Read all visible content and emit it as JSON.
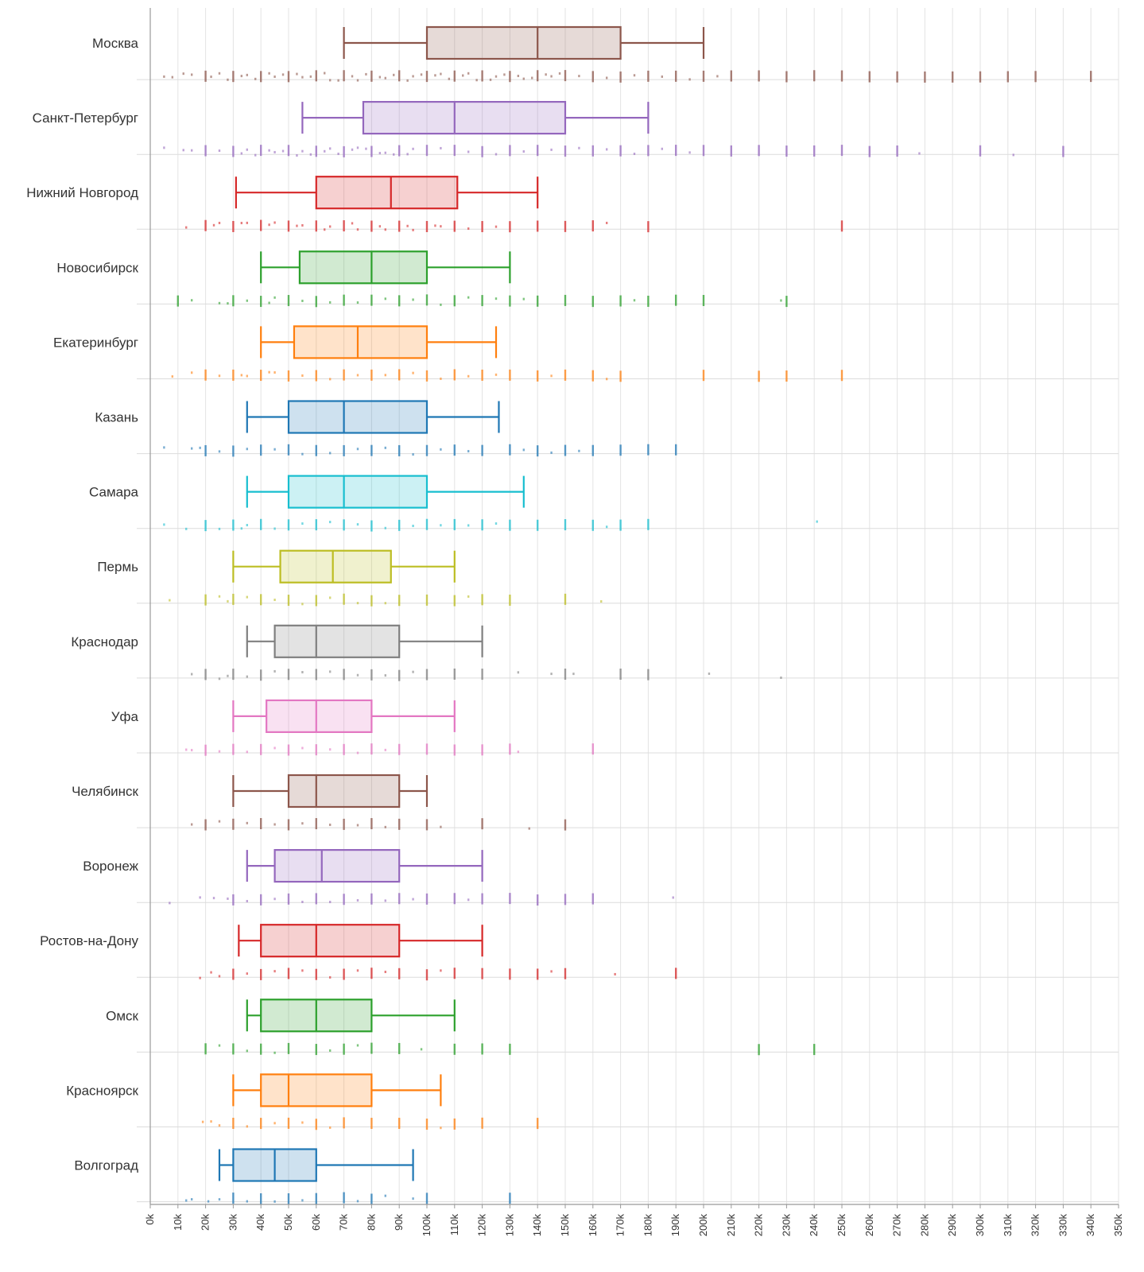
{
  "chart_data": {
    "type": "box",
    "orientation": "horizontal",
    "title": "",
    "xlabel": "",
    "ylabel": "",
    "xlim": [
      0,
      350000
    ],
    "x_tick_step": 10000,
    "x_ticks": [
      "0k",
      "10k",
      "20k",
      "30k",
      "40k",
      "50k",
      "60k",
      "70k",
      "80k",
      "90k",
      "100k",
      "110k",
      "120k",
      "130k",
      "140k",
      "150k",
      "160k",
      "170k",
      "180k",
      "190k",
      "200k",
      "210k",
      "220k",
      "230k",
      "240k",
      "250k",
      "260k",
      "270k",
      "280k",
      "290k",
      "300k",
      "310k",
      "320k",
      "330k",
      "340k",
      "350k"
    ],
    "grid": true,
    "show_points": true,
    "categories": [
      {
        "name": "Москва",
        "color": "#8c564b",
        "whisker_low": 70000,
        "q1": 100000,
        "median": 140000,
        "q3": 170000,
        "whisker_high": 200000,
        "points": [
          5000,
          8000,
          12000,
          15000,
          20000,
          22000,
          25000,
          28000,
          30000,
          33000,
          35000,
          38000,
          40000,
          43000,
          45000,
          48000,
          50000,
          53000,
          55000,
          58000,
          60000,
          63000,
          65000,
          68000,
          70000,
          73000,
          75000,
          78000,
          80000,
          83000,
          85000,
          88000,
          90000,
          93000,
          95000,
          98000,
          100000,
          103000,
          105000,
          108000,
          110000,
          113000,
          115000,
          118000,
          120000,
          123000,
          125000,
          128000,
          130000,
          133000,
          135000,
          138000,
          140000,
          143000,
          145000,
          148000,
          150000,
          155000,
          160000,
          165000,
          170000,
          175000,
          180000,
          185000,
          190000,
          195000,
          200000,
          205000,
          210000,
          220000,
          230000,
          240000,
          250000,
          260000,
          270000,
          280000,
          290000,
          300000,
          310000,
          320000,
          340000
        ]
      },
      {
        "name": "Санкт-Петербург",
        "color": "#9467bd",
        "whisker_low": 55000,
        "q1": 77000,
        "median": 110000,
        "q3": 150000,
        "whisker_high": 180000,
        "points": [
          5000,
          12000,
          15000,
          20000,
          25000,
          30000,
          33000,
          35000,
          38000,
          40000,
          43000,
          45000,
          48000,
          50000,
          53000,
          55000,
          58000,
          60000,
          63000,
          65000,
          68000,
          70000,
          73000,
          75000,
          78000,
          80000,
          83000,
          85000,
          88000,
          90000,
          93000,
          95000,
          100000,
          105000,
          110000,
          115000,
          120000,
          125000,
          130000,
          135000,
          140000,
          145000,
          150000,
          155000,
          160000,
          165000,
          170000,
          175000,
          180000,
          185000,
          190000,
          195000,
          200000,
          210000,
          220000,
          230000,
          240000,
          250000,
          260000,
          270000,
          278000,
          300000,
          312000,
          330000
        ]
      },
      {
        "name": "Нижний Новгород",
        "color": "#d62728",
        "whisker_low": 31000,
        "q1": 60000,
        "median": 87000,
        "q3": 111000,
        "whisker_high": 140000,
        "points": [
          13000,
          20000,
          23000,
          25000,
          30000,
          33000,
          35000,
          40000,
          43000,
          45000,
          50000,
          53000,
          55000,
          60000,
          63000,
          65000,
          70000,
          73000,
          75000,
          80000,
          83000,
          85000,
          90000,
          93000,
          95000,
          100000,
          103000,
          105000,
          110000,
          115000,
          120000,
          125000,
          130000,
          140000,
          150000,
          160000,
          165000,
          180000,
          250000
        ]
      },
      {
        "name": "Новосибирск",
        "color": "#2ca02c",
        "whisker_low": 40000,
        "q1": 54000,
        "median": 80000,
        "q3": 100000,
        "whisker_high": 130000,
        "points": [
          10000,
          15000,
          25000,
          28000,
          30000,
          35000,
          40000,
          43000,
          45000,
          50000,
          55000,
          60000,
          65000,
          70000,
          75000,
          80000,
          85000,
          90000,
          95000,
          100000,
          105000,
          110000,
          115000,
          120000,
          125000,
          130000,
          135000,
          140000,
          150000,
          160000,
          170000,
          175000,
          180000,
          190000,
          200000,
          228000,
          230000
        ]
      },
      {
        "name": "Екатеринбург",
        "color": "#ff7f0e",
        "whisker_low": 40000,
        "q1": 52000,
        "median": 75000,
        "q3": 100000,
        "whisker_high": 125000,
        "points": [
          8000,
          15000,
          20000,
          25000,
          30000,
          33000,
          35000,
          40000,
          43000,
          45000,
          50000,
          55000,
          60000,
          65000,
          70000,
          75000,
          80000,
          85000,
          90000,
          95000,
          100000,
          105000,
          110000,
          115000,
          120000,
          125000,
          130000,
          140000,
          145000,
          150000,
          160000,
          165000,
          170000,
          200000,
          220000,
          230000,
          250000
        ]
      },
      {
        "name": "Казань",
        "color": "#1f77b4",
        "whisker_low": 35000,
        "q1": 50000,
        "median": 70000,
        "q3": 100000,
        "whisker_high": 126000,
        "points": [
          5000,
          15000,
          18000,
          20000,
          25000,
          30000,
          35000,
          40000,
          45000,
          50000,
          55000,
          60000,
          65000,
          70000,
          75000,
          80000,
          85000,
          90000,
          95000,
          100000,
          105000,
          110000,
          115000,
          120000,
          130000,
          135000,
          140000,
          145000,
          150000,
          155000,
          160000,
          170000,
          180000,
          190000
        ]
      },
      {
        "name": "Самара",
        "color": "#17becf",
        "whisker_low": 35000,
        "q1": 50000,
        "median": 70000,
        "q3": 100000,
        "whisker_high": 135000,
        "points": [
          5000,
          13000,
          20000,
          25000,
          30000,
          33000,
          35000,
          40000,
          45000,
          50000,
          55000,
          60000,
          65000,
          70000,
          75000,
          80000,
          85000,
          90000,
          95000,
          100000,
          105000,
          110000,
          115000,
          120000,
          125000,
          130000,
          140000,
          150000,
          160000,
          165000,
          170000,
          180000,
          241000
        ]
      },
      {
        "name": "Пермь",
        "color": "#bcbd22",
        "whisker_low": 30000,
        "q1": 47000,
        "median": 66000,
        "q3": 87000,
        "whisker_high": 110000,
        "points": [
          7000,
          20000,
          25000,
          28000,
          30000,
          35000,
          40000,
          45000,
          50000,
          55000,
          60000,
          65000,
          70000,
          75000,
          80000,
          85000,
          90000,
          100000,
          110000,
          115000,
          120000,
          130000,
          150000,
          163000
        ]
      },
      {
        "name": "Краснодар",
        "color": "#7f7f7f",
        "whisker_low": 35000,
        "q1": 45000,
        "median": 60000,
        "q3": 90000,
        "whisker_high": 120000,
        "points": [
          15000,
          20000,
          25000,
          28000,
          30000,
          35000,
          40000,
          45000,
          50000,
          55000,
          60000,
          65000,
          70000,
          75000,
          80000,
          85000,
          90000,
          95000,
          100000,
          110000,
          120000,
          133000,
          145000,
          150000,
          153000,
          170000,
          180000,
          202000,
          228000
        ]
      },
      {
        "name": "Уфа",
        "color": "#e377c2",
        "whisker_low": 30000,
        "q1": 42000,
        "median": 60000,
        "q3": 80000,
        "whisker_high": 110000,
        "points": [
          13000,
          15000,
          20000,
          25000,
          30000,
          35000,
          40000,
          45000,
          50000,
          55000,
          60000,
          65000,
          70000,
          75000,
          80000,
          85000,
          90000,
          100000,
          110000,
          120000,
          130000,
          133000,
          160000
        ]
      },
      {
        "name": "Челябинск",
        "color": "#8c564b",
        "whisker_low": 30000,
        "q1": 50000,
        "median": 60000,
        "q3": 90000,
        "whisker_high": 100000,
        "points": [
          15000,
          20000,
          25000,
          30000,
          35000,
          40000,
          45000,
          50000,
          55000,
          60000,
          65000,
          70000,
          75000,
          80000,
          85000,
          90000,
          100000,
          105000,
          120000,
          137000,
          150000
        ]
      },
      {
        "name": "Воронеж",
        "color": "#9467bd",
        "whisker_low": 35000,
        "q1": 45000,
        "median": 62000,
        "q3": 90000,
        "whisker_high": 120000,
        "points": [
          7000,
          18000,
          23000,
          28000,
          30000,
          35000,
          40000,
          45000,
          50000,
          55000,
          60000,
          65000,
          70000,
          75000,
          80000,
          85000,
          90000,
          95000,
          100000,
          110000,
          115000,
          120000,
          130000,
          140000,
          150000,
          160000,
          189000
        ]
      },
      {
        "name": "Ростов-на-Дону",
        "color": "#d62728",
        "whisker_low": 32000,
        "q1": 40000,
        "median": 60000,
        "q3": 90000,
        "whisker_high": 120000,
        "points": [
          18000,
          22000,
          25000,
          30000,
          35000,
          40000,
          45000,
          50000,
          55000,
          60000,
          65000,
          70000,
          75000,
          80000,
          85000,
          90000,
          100000,
          105000,
          110000,
          120000,
          130000,
          140000,
          145000,
          150000,
          168000,
          190000
        ]
      },
      {
        "name": "Омск",
        "color": "#2ca02c",
        "whisker_low": 35000,
        "q1": 40000,
        "median": 60000,
        "q3": 80000,
        "whisker_high": 110000,
        "points": [
          20000,
          25000,
          30000,
          35000,
          40000,
          45000,
          50000,
          60000,
          65000,
          70000,
          75000,
          80000,
          90000,
          98000,
          110000,
          120000,
          130000,
          220000,
          240000
        ]
      },
      {
        "name": "Красноярск",
        "color": "#ff7f0e",
        "whisker_low": 30000,
        "q1": 40000,
        "median": 50000,
        "q3": 80000,
        "whisker_high": 105000,
        "points": [
          19000,
          22000,
          25000,
          30000,
          35000,
          40000,
          45000,
          50000,
          55000,
          60000,
          65000,
          70000,
          80000,
          90000,
          100000,
          105000,
          110000,
          120000,
          140000
        ]
      },
      {
        "name": "Волгоград",
        "color": "#1f77b4",
        "whisker_low": 25000,
        "q1": 30000,
        "median": 45000,
        "q3": 60000,
        "whisker_high": 95000,
        "points": [
          13000,
          15000,
          21000,
          25000,
          30000,
          35000,
          40000,
          45000,
          50000,
          55000,
          60000,
          70000,
          75000,
          80000,
          85000,
          95000,
          100000,
          130000
        ]
      }
    ]
  }
}
